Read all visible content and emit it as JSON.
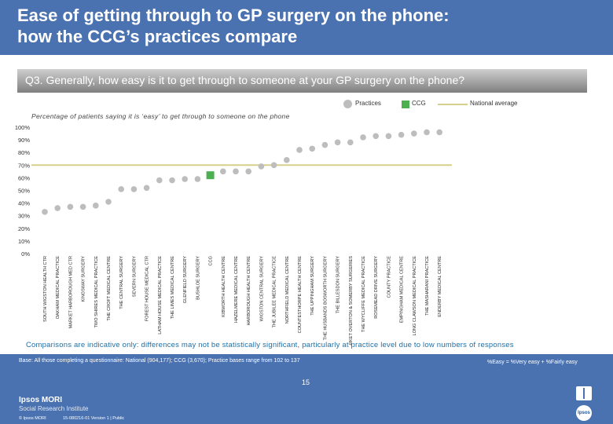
{
  "header": {
    "title": "Ease of getting through to GP surgery on the phone:\nhow the CCG’s practices compare"
  },
  "question": "Q3. Generally, how easy is it to get through to someone at your GP surgery on the phone?",
  "legend": {
    "practices": "Practices",
    "ccg": "CCG",
    "national": "National average"
  },
  "subtitle": "Percentage of patients saying it is ‘easy’ to get through to someone on the phone",
  "colors": {
    "practice": "#bdbdbd",
    "ccg": "#4caf50",
    "national": "#d6cf8c",
    "brand": "#4a72b0"
  },
  "chart_data": {
    "type": "scatter",
    "ylim": [
      0,
      100
    ],
    "y_ticks": [
      "0%",
      "10%",
      "20%",
      "30%",
      "40%",
      "50%",
      "60%",
      "70%",
      "80%",
      "90%",
      "100%"
    ],
    "national_average": 70,
    "categories": [
      "SOUTH WIGSTON HEALTH CTR",
      "OAKHAM MEDICAL PRACTICE",
      "MARKET HARBOROUGH MED CTR",
      "KINGSWAY SURGERY",
      "TWO SHIRES MEDICAL PRACTICE",
      "THE CROFT MEDICAL CENTRE",
      "THE CENTRAL SURGERY",
      "SEVERN SURGERY",
      "FOREST HOUSE MEDICAL CTR",
      "LATHAM HOUSE MEDICAL PRACTICE",
      "THE LIMES MEDICAL CENTRE",
      "GLENFIELD SURGERY",
      "BUSHLOE SURGERY",
      "CCG",
      "KIBWORTH HEALTH CENTRE",
      "HAZELMERE MEDICAL CENTRE",
      "HARBOROUGH HEALTH CENTRE",
      "WIGSTON CENTRAL SURGERY",
      "THE JUBILEE MEDICAL PRACTICE",
      "NORTHFIELD MEDICAL CENTRE",
      "COUNTESTHORPE HEALTH CENTRE",
      "THE UPPINGHAM SURGERY",
      "THE HUSBANDS BOSWORTH SURGERY",
      "THE BILLESDON SURGERY",
      "MARKET OVERTON & SOMERBY SURGERIES",
      "THE WYCLIFFE MEDICAL PRACTICE",
      "ROSEMEAD DRIVE SURGERY",
      "COUNTY PRACTICE",
      "EMPINGHAM MEDICAL CENTRE",
      "LONG CLAWSON MEDICAL PRACTICE",
      "THE MASHARANI PRACTICE",
      "ENDERBY MEDICAL CENTRE"
    ],
    "values": [
      33,
      36,
      37,
      37,
      38,
      41,
      51,
      51,
      52,
      58,
      58,
      59,
      59,
      62,
      65,
      65,
      65,
      69,
      70,
      74,
      82,
      83,
      86,
      88,
      88,
      92,
      93,
      93,
      94,
      95,
      96,
      96
    ],
    "highlight_index": 13
  },
  "footer": {
    "note": "Comparisons are indicative only: differences may not be statistically significant, particularly at practice level due to low numbers of responses",
    "base": "Base: All those completing a questionnaire: National (904,177); CCG (3,670); Practice bases range from 102 to 137",
    "easy_def": "%Easy = %Very easy + %Fairly easy",
    "page_number": "15",
    "logo_name": "Ipsos MORI",
    "logo_sub": "Social Research Institute",
    "copyright": "© Ipsos MORI",
    "version": "15-080216-01 Version 1 | Public",
    "badge": "Ipsos"
  }
}
